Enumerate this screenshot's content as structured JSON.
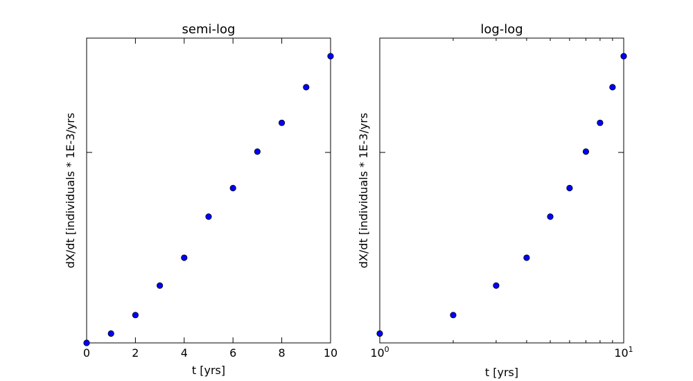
{
  "chart_data": [
    {
      "type": "scatter",
      "title": "semi-log",
      "xlabel": "t [yrs]",
      "ylabel": "dX/dt [individuals * 1E-3/yrs",
      "xscale": "linear",
      "yscale": "log",
      "xlim": [
        0,
        10
      ],
      "xticks": [
        0,
        2,
        4,
        6,
        8,
        10
      ],
      "xtick_labels": [
        "0",
        "2",
        "4",
        "6",
        "8",
        "10"
      ],
      "ytick_labels": [],
      "grid": false,
      "marker_color": "#0000ff",
      "series": [
        {
          "x": [
            0,
            1,
            2,
            3,
            4,
            5,
            6,
            7,
            8,
            9,
            10
          ],
          "y": [
            1.0,
            1.12,
            1.4,
            2.0,
            2.8,
            4.6,
            6.5,
            10.1,
            14.3,
            22.0,
            32.0
          ]
        }
      ]
    },
    {
      "type": "scatter",
      "title": "log-log",
      "xlabel": "t [yrs]",
      "ylabel": "dX/dt [individuals * 1E-3/yrs",
      "xscale": "log",
      "yscale": "log",
      "xlim": [
        1,
        10
      ],
      "xticks": [
        1,
        10
      ],
      "xtick_labels": [
        {
          "base": "10",
          "exp": "0"
        },
        {
          "base": "10",
          "exp": "1"
        }
      ],
      "xminor_ticks": [
        2,
        3,
        4,
        5,
        6,
        7,
        8,
        9
      ],
      "ytick_labels": [],
      "grid": false,
      "marker_color": "#0000ff",
      "series": [
        {
          "x": [
            1,
            2,
            3,
            4,
            5,
            6,
            7,
            8,
            9,
            10
          ],
          "y": [
            1.12,
            1.4,
            2.0,
            2.8,
            4.6,
            6.5,
            10.1,
            14.3,
            22.0,
            32.0
          ]
        }
      ]
    }
  ]
}
